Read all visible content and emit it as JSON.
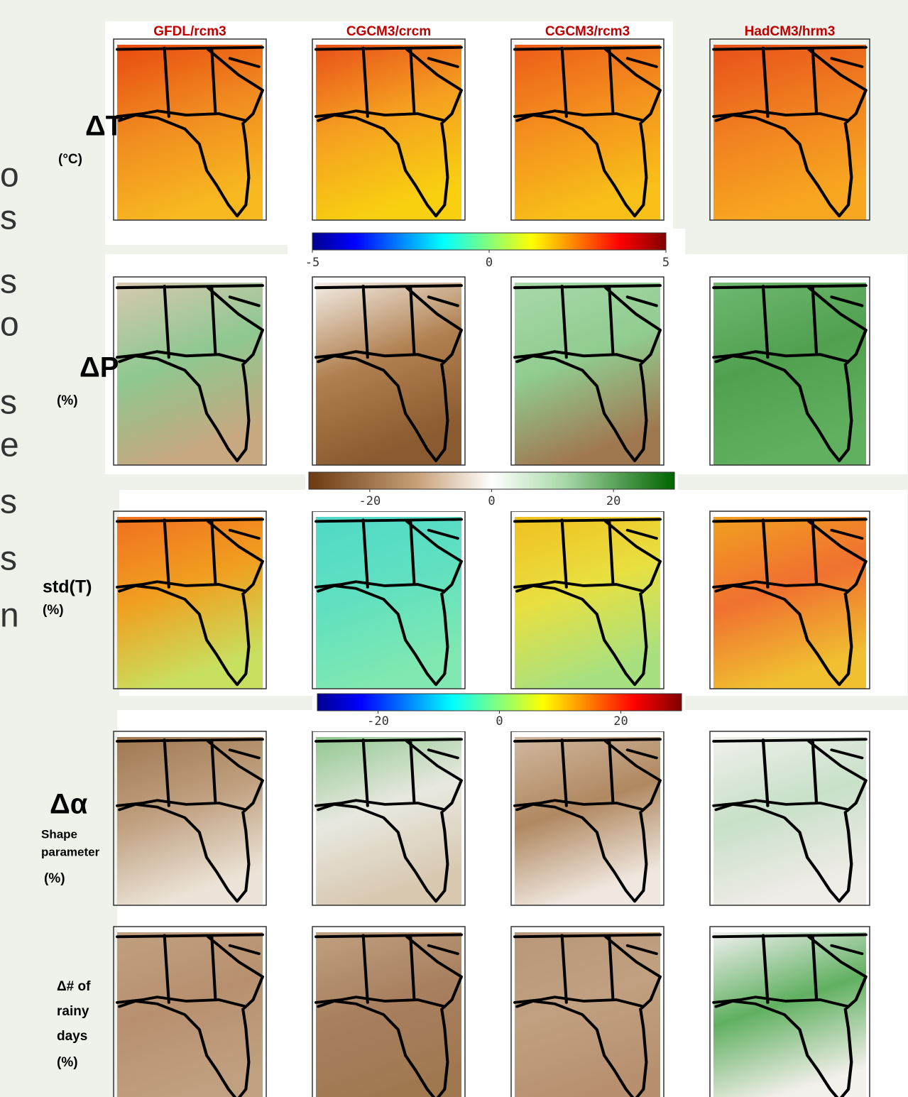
{
  "columns": [
    "GFDL/rcm3",
    "CGCM3/crcm",
    "CGCM3/rcm3",
    "HadCM3/hrm3"
  ],
  "rows": [
    {
      "lines": [
        "ΔT",
        "(°C)"
      ]
    },
    {
      "lines": [
        "ΔP",
        "(%)"
      ]
    },
    {
      "lines": [
        "std(T)",
        "(%)"
      ]
    },
    {
      "lines": [
        "Δα",
        "Shape",
        "parameter",
        "(%)"
      ]
    },
    {
      "lines": [
        "Δ# of",
        "rainy",
        "days",
        "(%)"
      ]
    }
  ],
  "colorbars": [
    {
      "colormap": "jet",
      "range": [
        -5,
        5
      ],
      "ticks": [
        -5,
        0,
        5
      ]
    },
    {
      "colormap": "brown-green",
      "range": [
        -30,
        30
      ],
      "ticks": [
        -20,
        0,
        20
      ]
    },
    {
      "colormap": "jet",
      "range": [
        -30,
        30
      ],
      "ticks": [
        -20,
        0,
        20
      ]
    }
  ],
  "side_text": [
    "o",
    "s",
    "s",
    "o",
    "s",
    "e",
    "s",
    "s",
    "n"
  ]
}
